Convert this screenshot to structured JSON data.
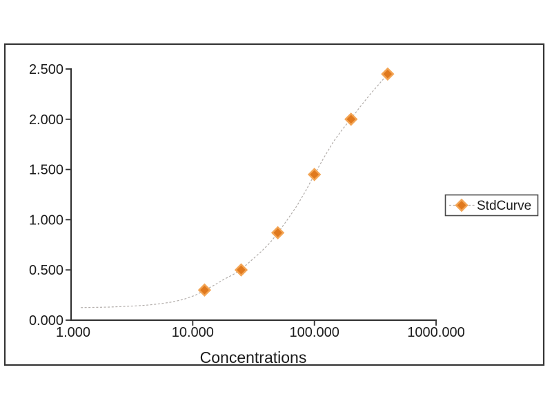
{
  "page": {
    "background": "#ffffff"
  },
  "chart_data": {
    "type": "scatter",
    "title": "",
    "xlabel": "Concentrations",
    "ylabel": "",
    "x_scale": "log",
    "grid": false,
    "xlim": [
      1,
      1000
    ],
    "ylim": [
      0,
      2.5
    ],
    "x_ticks": [
      1,
      10,
      100,
      1000
    ],
    "x_tick_labels": [
      "1.000",
      "10.000",
      "100.000",
      "1000.000"
    ],
    "y_ticks": [
      0,
      0.5,
      1,
      1.5,
      2,
      2.5
    ],
    "y_tick_labels": [
      "0.000",
      "0.500",
      "1.000",
      "1.500",
      "2.000",
      "2.500"
    ],
    "axis_color": "#2e2e2e",
    "text_color": "#1b1b1b",
    "frame_color": "#343434",
    "legend": {
      "position": "right",
      "border_color": "#4a4a4a",
      "entries": [
        {
          "label": "StdCurve",
          "marker": "diamond",
          "marker_color": "#e0791e",
          "marker_edge_color": "#f3a555"
        }
      ]
    },
    "series": [
      {
        "name": "StdCurve",
        "marker": "diamond",
        "marker_size": 8,
        "marker_color": "#e0791e",
        "marker_edge_color": "#f3a555",
        "line_style": "dotted",
        "line_color": "#b2adaa",
        "points": [
          {
            "x": 12.5,
            "y": 0.3
          },
          {
            "x": 25,
            "y": 0.5
          },
          {
            "x": 50,
            "y": 0.87
          },
          {
            "x": 100,
            "y": 1.45
          },
          {
            "x": 200,
            "y": 2.0
          },
          {
            "x": 400,
            "y": 2.45
          }
        ],
        "fit_curve_xy": [
          [
            1.2,
            0.125
          ],
          [
            1.5,
            0.127
          ],
          [
            2,
            0.13
          ],
          [
            2.6,
            0.135
          ],
          [
            3.3,
            0.141
          ],
          [
            4.2,
            0.15
          ],
          [
            5.3,
            0.162
          ],
          [
            6.7,
            0.18
          ],
          [
            8.4,
            0.207
          ],
          [
            10.5,
            0.248
          ],
          [
            12.5,
            0.297
          ],
          [
            15,
            0.348
          ],
          [
            18,
            0.405
          ],
          [
            21.5,
            0.455
          ],
          [
            25,
            0.505
          ],
          [
            30,
            0.59
          ],
          [
            36,
            0.675
          ],
          [
            43,
            0.768
          ],
          [
            50,
            0.868
          ],
          [
            60,
            1.0
          ],
          [
            72,
            1.14
          ],
          [
            86,
            1.3
          ],
          [
            100,
            1.45
          ],
          [
            120,
            1.62
          ],
          [
            144,
            1.78
          ],
          [
            170,
            1.9
          ],
          [
            200,
            2.005
          ],
          [
            240,
            2.13
          ],
          [
            288,
            2.25
          ],
          [
            340,
            2.35
          ],
          [
            400,
            2.45
          ]
        ]
      }
    ]
  }
}
